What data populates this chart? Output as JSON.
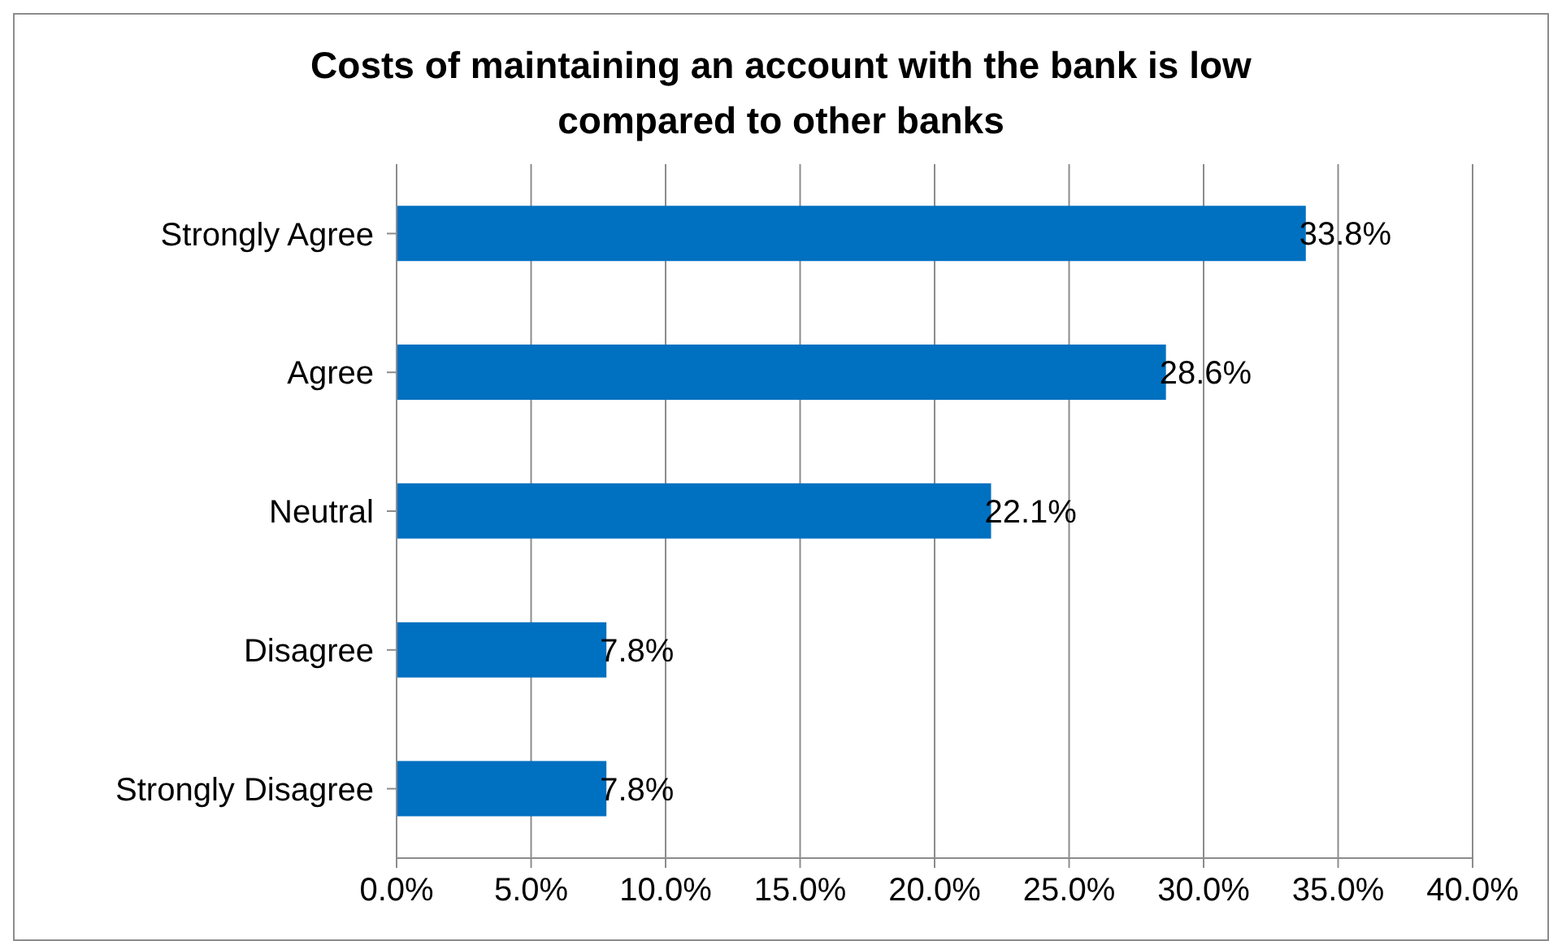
{
  "chart_data": {
    "type": "bar",
    "orientation": "horizontal",
    "title": "Costs of maintaining an account with the bank is low compared to other banks",
    "categories": [
      "Strongly Agree",
      "Agree",
      "Neutral",
      "Disagree",
      "Strongly Disagree"
    ],
    "values": [
      33.8,
      28.6,
      22.1,
      7.8,
      7.8
    ],
    "value_labels": [
      "33.8%",
      "28.6%",
      "22.1%",
      "7.8%",
      "7.8%"
    ],
    "color": "#0070c0",
    "xlim": [
      0,
      40
    ],
    "xticks": [
      {
        "value": 0,
        "label": "0.0%"
      },
      {
        "value": 5,
        "label": "5.0%"
      },
      {
        "value": 10,
        "label": "10.0%"
      },
      {
        "value": 15,
        "label": "15.0%"
      },
      {
        "value": 20,
        "label": "20.0%"
      },
      {
        "value": 25,
        "label": "25.0%"
      },
      {
        "value": 30,
        "label": "30.0%"
      },
      {
        "value": 35,
        "label": "35.0%"
      },
      {
        "value": 40,
        "label": "40.0%"
      }
    ],
    "grid": "x",
    "legend": false
  }
}
